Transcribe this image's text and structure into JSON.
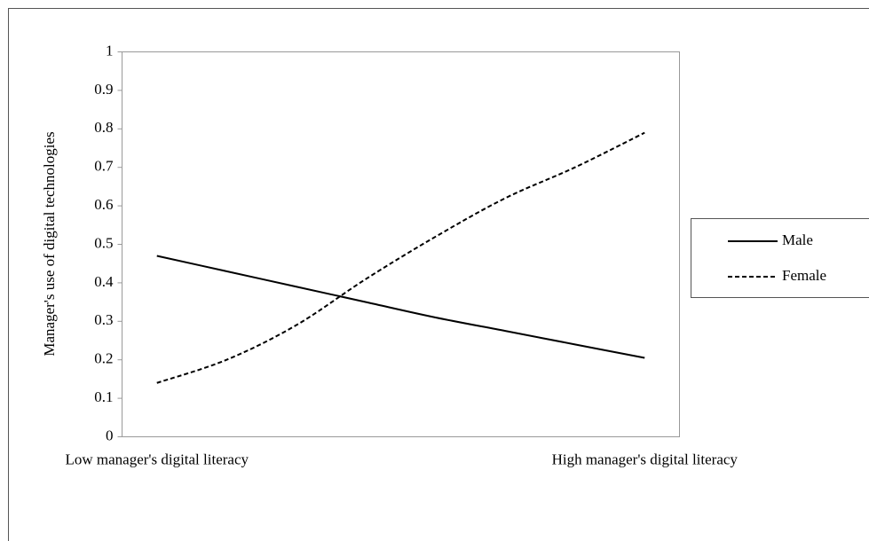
{
  "chart_data": {
    "type": "line",
    "y_label": "Manager's use of digital technologies",
    "categories": [
      "Low manager's digital literacy",
      null,
      null,
      null,
      null,
      null,
      null,
      "High manager's digital literacy"
    ],
    "series": [
      {
        "name": "Male",
        "color": "#000000",
        "dash": "solid",
        "values": [
          0.47,
          0.43,
          0.39,
          0.35,
          0.31,
          0.275,
          0.24,
          0.205
        ]
      },
      {
        "name": "Female",
        "color": "#000000",
        "dash": "dashed",
        "values": [
          0.14,
          0.2,
          0.29,
          0.41,
          0.52,
          0.62,
          0.7,
          0.79
        ]
      }
    ],
    "ylim": [
      0,
      1
    ],
    "yticks": [
      0,
      0.1,
      0.2,
      0.3,
      0.4,
      0.5,
      0.6,
      0.7,
      0.8,
      0.9,
      1
    ],
    "grid": false,
    "legend": "right"
  }
}
